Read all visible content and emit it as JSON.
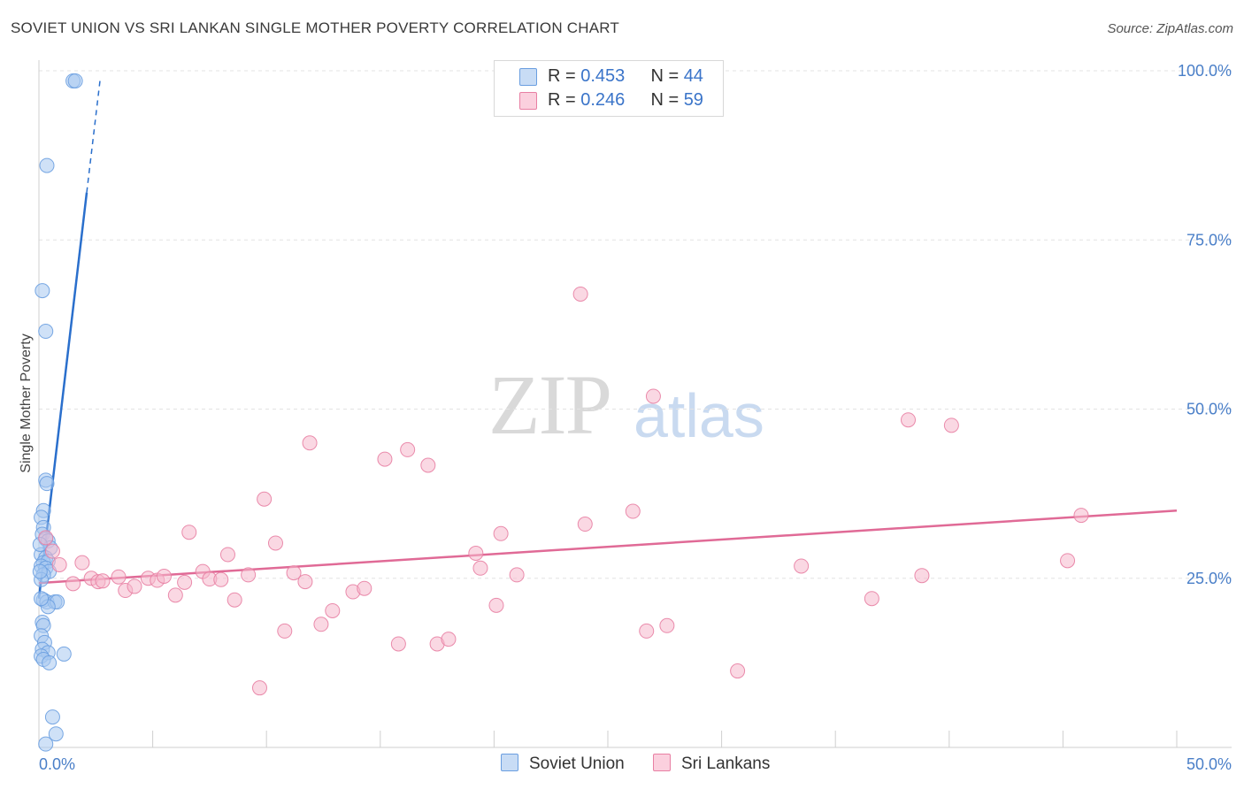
{
  "header": {
    "title": "SOVIET UNION VS SRI LANKAN SINGLE MOTHER POVERTY CORRELATION CHART",
    "source": "Source: ZipAtlas.com"
  },
  "watermark": {
    "zip": "ZIP",
    "atlas": "atlas"
  },
  "legend": {
    "rows": [
      {
        "r_label": "R = ",
        "r_value": "0.453",
        "n_label": "N = ",
        "n_value": "44",
        "color": "#a8c8f0"
      },
      {
        "r_label": "R = ",
        "r_value": "0.246",
        "n_label": "N = ",
        "n_value": "59",
        "color": "#f5b8cc"
      }
    ]
  },
  "chart_data": {
    "type": "scatter",
    "xlabel": "",
    "ylabel": "Single Mother Poverty",
    "xlim": [
      0,
      50
    ],
    "ylim": [
      0,
      100
    ],
    "x_ticks": [
      "0.0%",
      "50.0%"
    ],
    "y_ticks": [
      {
        "value": 25,
        "label": "25.0%"
      },
      {
        "value": 50,
        "label": "50.0%"
      },
      {
        "value": 75,
        "label": "75.0%"
      },
      {
        "value": 100,
        "label": "100.0%"
      }
    ],
    "grid": true,
    "legend_position": "top-center",
    "series": [
      {
        "name": "Soviet Union",
        "color": "#6a9ee0",
        "fill": "#a8c8f0",
        "trend": {
          "x": [
            0.0,
            2.1
          ],
          "y": [
            22.0,
            82.0
          ],
          "dashed_to": {
            "x": 2.7,
            "y": 99.0
          }
        },
        "points": [
          [
            1.5,
            98.5
          ],
          [
            1.6,
            98.5
          ],
          [
            0.35,
            86.0
          ],
          [
            0.15,
            67.5
          ],
          [
            0.3,
            61.5
          ],
          [
            0.3,
            39.5
          ],
          [
            0.35,
            39.0
          ],
          [
            0.2,
            35.0
          ],
          [
            0.1,
            34.0
          ],
          [
            0.2,
            32.5
          ],
          [
            0.15,
            31.5
          ],
          [
            0.3,
            30.8
          ],
          [
            0.4,
            30.5
          ],
          [
            0.5,
            29.5
          ],
          [
            0.1,
            28.5
          ],
          [
            0.3,
            28.0
          ],
          [
            0.2,
            27.3
          ],
          [
            0.4,
            27.5
          ],
          [
            0.1,
            26.8
          ],
          [
            0.3,
            26.5
          ],
          [
            0.45,
            26.0
          ],
          [
            0.2,
            25.5
          ],
          [
            0.1,
            24.8
          ],
          [
            0.2,
            21.8
          ],
          [
            0.35,
            21.5
          ],
          [
            0.7,
            21.5
          ],
          [
            0.8,
            21.5
          ],
          [
            0.4,
            20.8
          ],
          [
            0.15,
            18.5
          ],
          [
            0.2,
            18.0
          ],
          [
            0.1,
            16.5
          ],
          [
            0.25,
            15.5
          ],
          [
            0.15,
            14.5
          ],
          [
            0.4,
            14.0
          ],
          [
            0.1,
            13.5
          ],
          [
            0.2,
            13.0
          ],
          [
            1.1,
            13.8
          ],
          [
            0.45,
            12.5
          ],
          [
            0.6,
            4.5
          ],
          [
            0.75,
            2.0
          ],
          [
            0.3,
            0.5
          ],
          [
            0.1,
            22.0
          ],
          [
            0.05,
            30.0
          ],
          [
            0.05,
            26.0
          ]
        ]
      },
      {
        "name": "Sri Lankans",
        "color": "#e87fa3",
        "fill": "#f5b8cc",
        "trend": {
          "x": [
            0.0,
            50.0
          ],
          "y": [
            24.3,
            35.0
          ]
        },
        "points": [
          [
            0.3,
            31.0
          ],
          [
            0.6,
            29.0
          ],
          [
            0.9,
            27.0
          ],
          [
            1.9,
            27.3
          ],
          [
            1.5,
            24.2
          ],
          [
            2.3,
            25.0
          ],
          [
            2.6,
            24.5
          ],
          [
            2.8,
            24.6
          ],
          [
            3.5,
            25.2
          ],
          [
            3.8,
            23.2
          ],
          [
            4.2,
            23.8
          ],
          [
            4.8,
            25.0
          ],
          [
            5.2,
            24.7
          ],
          [
            5.5,
            25.3
          ],
          [
            6.0,
            22.5
          ],
          [
            6.4,
            24.4
          ],
          [
            6.6,
            31.8
          ],
          [
            7.2,
            26.0
          ],
          [
            7.5,
            24.9
          ],
          [
            8.0,
            24.8
          ],
          [
            8.3,
            28.5
          ],
          [
            8.6,
            21.8
          ],
          [
            9.2,
            25.5
          ],
          [
            9.7,
            8.8
          ],
          [
            9.9,
            36.7
          ],
          [
            10.4,
            30.2
          ],
          [
            10.8,
            17.2
          ],
          [
            11.2,
            25.8
          ],
          [
            11.7,
            24.5
          ],
          [
            11.9,
            45.0
          ],
          [
            12.4,
            18.2
          ],
          [
            12.9,
            20.2
          ],
          [
            13.8,
            23.0
          ],
          [
            14.3,
            23.5
          ],
          [
            15.2,
            42.6
          ],
          [
            15.8,
            15.3
          ],
          [
            16.2,
            44.0
          ],
          [
            17.1,
            41.7
          ],
          [
            17.5,
            15.3
          ],
          [
            18.0,
            16.0
          ],
          [
            19.2,
            28.7
          ],
          [
            19.4,
            26.5
          ],
          [
            20.1,
            21.0
          ],
          [
            20.3,
            31.6
          ],
          [
            21.0,
            25.5
          ],
          [
            23.8,
            67.0
          ],
          [
            24.0,
            33.0
          ],
          [
            26.1,
            34.9
          ],
          [
            26.7,
            17.2
          ],
          [
            27.0,
            51.9
          ],
          [
            27.6,
            18.0
          ],
          [
            30.7,
            11.3
          ],
          [
            33.5,
            26.8
          ],
          [
            36.6,
            22.0
          ],
          [
            38.2,
            48.4
          ],
          [
            38.8,
            25.4
          ],
          [
            40.1,
            47.6
          ],
          [
            45.2,
            27.6
          ],
          [
            45.8,
            34.3
          ]
        ]
      }
    ]
  }
}
